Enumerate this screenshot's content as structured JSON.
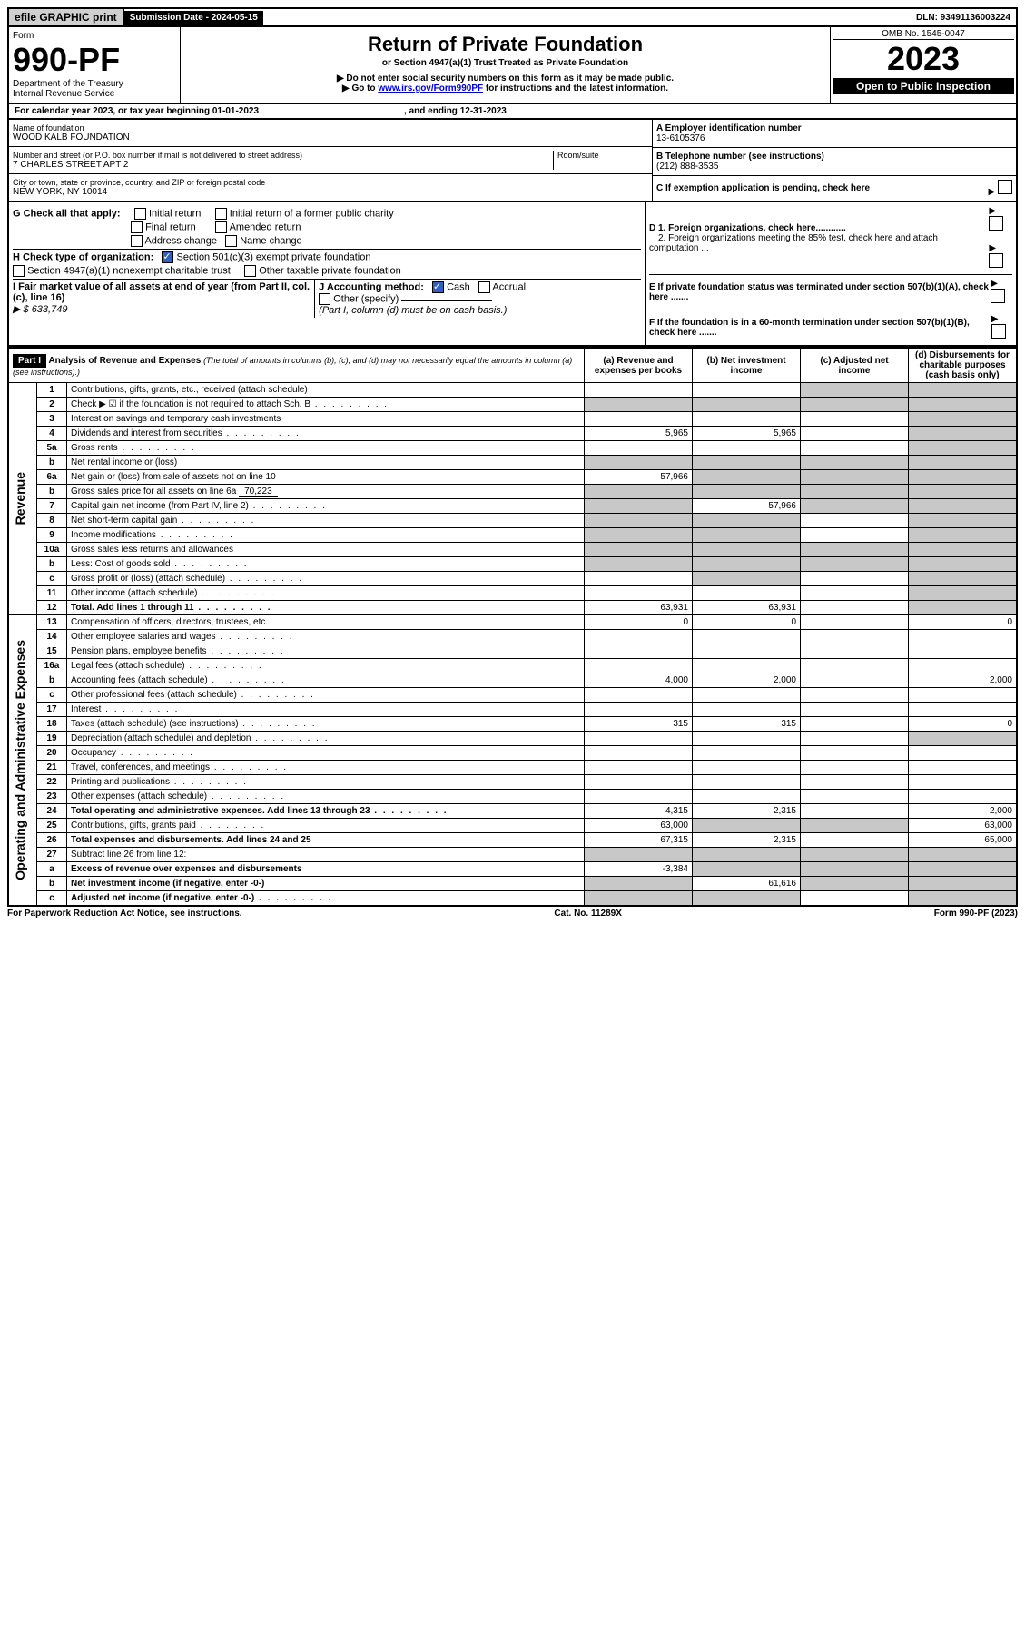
{
  "topbar": {
    "efile": "efile GRAPHIC print",
    "submission": "Submission Date - 2024-05-15",
    "dln": "DLN: 93491136003224"
  },
  "header": {
    "form_label": "Form",
    "form_no": "990-PF",
    "dept": "Department of the Treasury",
    "irs": "Internal Revenue Service",
    "title": "Return of Private Foundation",
    "subtitle": "or Section 4947(a)(1) Trust Treated as Private Foundation",
    "note1": "▶ Do not enter social security numbers on this form as it may be made public.",
    "note2_pre": "▶ Go to ",
    "note2_link": "www.irs.gov/Form990PF",
    "note2_post": " for instructions and the latest information.",
    "omb": "OMB No. 1545-0047",
    "year": "2023",
    "open": "Open to Public Inspection"
  },
  "calyear": {
    "text": "For calendar year 2023, or tax year beginning 01-01-2023",
    "ending": ", and ending 12-31-2023"
  },
  "entity": {
    "name_lbl": "Name of foundation",
    "name": "WOOD KALB FOUNDATION",
    "addr_lbl": "Number and street (or P.O. box number if mail is not delivered to street address)",
    "addr": "7 CHARLES STREET APT 2",
    "room_lbl": "Room/suite",
    "city_lbl": "City or town, state or province, country, and ZIP or foreign postal code",
    "city": "NEW YORK, NY  10014",
    "a_lbl": "A Employer identification number",
    "a_val": "13-6105376",
    "b_lbl": "B Telephone number (see instructions)",
    "b_val": "(212) 888-3535",
    "c_lbl": "C If exemption application is pending, check here"
  },
  "checks": {
    "g_lbl": "G Check all that apply:",
    "g1": "Initial return",
    "g2": "Initial return of a former public charity",
    "g3": "Final return",
    "g4": "Amended return",
    "g5": "Address change",
    "g6": "Name change",
    "h_lbl": "H Check type of organization:",
    "h1": "Section 501(c)(3) exempt private foundation",
    "h2": "Section 4947(a)(1) nonexempt charitable trust",
    "h3": "Other taxable private foundation",
    "i_lbl": "I Fair market value of all assets at end of year (from Part II, col. (c), line 16)",
    "i_val": "▶ $  633,749",
    "j_lbl": "J Accounting method:",
    "j1": "Cash",
    "j2": "Accrual",
    "j3": "Other (specify)",
    "j_note": "(Part I, column (d) must be on cash basis.)",
    "d1": "D 1. Foreign organizations, check here............",
    "d2": "2. Foreign organizations meeting the 85% test, check here and attach computation ...",
    "e": "E  If private foundation status was terminated under section 507(b)(1)(A), check here .......",
    "f": "F  If the foundation is in a 60-month termination under section 507(b)(1)(B), check here ......."
  },
  "part1": {
    "label": "Part I",
    "title": "Analysis of Revenue and Expenses",
    "title_note": "(The total of amounts in columns (b), (c), and (d) may not necessarily equal the amounts in column (a) (see instructions).)",
    "col_a": "(a) Revenue and expenses per books",
    "col_b": "(b) Net investment income",
    "col_c": "(c) Adjusted net income",
    "col_d": "(d) Disbursements for charitable purposes (cash basis only)"
  },
  "sections": {
    "rev": "Revenue",
    "exp": "Operating and Administrative Expenses"
  },
  "rows": [
    {
      "n": "1",
      "d": "Contributions, gifts, grants, etc., received (attach schedule)",
      "a": "",
      "b": "",
      "cGray": true,
      "dGray": true
    },
    {
      "n": "2",
      "d": "Check ▶ ☑ if the foundation is not required to attach Sch. B",
      "dots": true,
      "a": "",
      "aGray": true,
      "bGray": true,
      "cGray": true,
      "dGray": true,
      "bold": false
    },
    {
      "n": "3",
      "d": "Interest on savings and temporary cash investments",
      "a": "",
      "b": "",
      "c": "",
      "dGray": true
    },
    {
      "n": "4",
      "d": "Dividends and interest from securities",
      "dots": true,
      "a": "5,965",
      "b": "5,965",
      "c": "",
      "dGray": true
    },
    {
      "n": "5a",
      "d": "Gross rents",
      "dots": true,
      "a": "",
      "b": "",
      "c": "",
      "dGray": true
    },
    {
      "n": "b",
      "d": "Net rental income or (loss)",
      "underline": true,
      "aGray": true,
      "bGray": true,
      "cGray": true,
      "dGray": true
    },
    {
      "n": "6a",
      "d": "Net gain or (loss) from sale of assets not on line 10",
      "a": "57,966",
      "bGray": true,
      "cGray": true,
      "dGray": true
    },
    {
      "n": "b",
      "d": "Gross sales price for all assets on line 6a",
      "inline": "70,223",
      "aGray": true,
      "bGray": true,
      "cGray": true,
      "dGray": true
    },
    {
      "n": "7",
      "d": "Capital gain net income (from Part IV, line 2)",
      "dots": true,
      "aGray": true,
      "b": "57,966",
      "cGray": true,
      "dGray": true
    },
    {
      "n": "8",
      "d": "Net short-term capital gain",
      "dots": true,
      "aGray": true,
      "bGray": true,
      "c": "",
      "dGray": true
    },
    {
      "n": "9",
      "d": "Income modifications",
      "dots": true,
      "aGray": true,
      "bGray": true,
      "c": "",
      "dGray": true
    },
    {
      "n": "10a",
      "d": "Gross sales less returns and allowances",
      "aGray": true,
      "bGray": true,
      "cGray": true,
      "dGray": true
    },
    {
      "n": "b",
      "d": "Less: Cost of goods sold",
      "dots": true,
      "aGray": true,
      "bGray": true,
      "cGray": true,
      "dGray": true
    },
    {
      "n": "c",
      "d": "Gross profit or (loss) (attach schedule)",
      "dots": true,
      "a": "",
      "bGray": true,
      "c": "",
      "dGray": true
    },
    {
      "n": "11",
      "d": "Other income (attach schedule)",
      "dots": true,
      "a": "",
      "b": "",
      "c": "",
      "dGray": true
    },
    {
      "n": "12",
      "d": "Total. Add lines 1 through 11",
      "dots": true,
      "bold": true,
      "a": "63,931",
      "b": "63,931",
      "c": "",
      "dGray": true
    }
  ],
  "exprows": [
    {
      "n": "13",
      "d": "Compensation of officers, directors, trustees, etc.",
      "a": "0",
      "b": "0",
      "c": "",
      "dVal": "0"
    },
    {
      "n": "14",
      "d": "Other employee salaries and wages",
      "dots": true
    },
    {
      "n": "15",
      "d": "Pension plans, employee benefits",
      "dots": true
    },
    {
      "n": "16a",
      "d": "Legal fees (attach schedule)",
      "dots": true
    },
    {
      "n": "b",
      "d": "Accounting fees (attach schedule)",
      "dots": true,
      "a": "4,000",
      "b": "2,000",
      "c": "",
      "dVal": "2,000"
    },
    {
      "n": "c",
      "d": "Other professional fees (attach schedule)",
      "dots": true
    },
    {
      "n": "17",
      "d": "Interest",
      "dots": true
    },
    {
      "n": "18",
      "d": "Taxes (attach schedule) (see instructions)",
      "dots": true,
      "a": "315",
      "b": "315",
      "c": "",
      "dVal": "0"
    },
    {
      "n": "19",
      "d": "Depreciation (attach schedule) and depletion",
      "dots": true,
      "dGray": true
    },
    {
      "n": "20",
      "d": "Occupancy",
      "dots": true
    },
    {
      "n": "21",
      "d": "Travel, conferences, and meetings",
      "dots": true
    },
    {
      "n": "22",
      "d": "Printing and publications",
      "dots": true
    },
    {
      "n": "23",
      "d": "Other expenses (attach schedule)",
      "dots": true
    },
    {
      "n": "24",
      "d": "Total operating and administrative expenses. Add lines 13 through 23",
      "dots": true,
      "bold": true,
      "a": "4,315",
      "b": "2,315",
      "c": "",
      "dVal": "2,000"
    },
    {
      "n": "25",
      "d": "Contributions, gifts, grants paid",
      "dots": true,
      "a": "63,000",
      "bGray": true,
      "cGray": true,
      "dVal": "63,000"
    },
    {
      "n": "26",
      "d": "Total expenses and disbursements. Add lines 24 and 25",
      "bold": true,
      "a": "67,315",
      "b": "2,315",
      "c": "",
      "dVal": "65,000"
    },
    {
      "n": "27",
      "d": "Subtract line 26 from line 12:",
      "aGray": true,
      "bGray": true,
      "cGray": true,
      "dGray": true
    },
    {
      "n": "a",
      "d": "Excess of revenue over expenses and disbursements",
      "bold": true,
      "a": "-3,384",
      "bGray": true,
      "cGray": true,
      "dGray": true
    },
    {
      "n": "b",
      "d": "Net investment income (if negative, enter -0-)",
      "bold": true,
      "aGray": true,
      "b": "61,616",
      "cGray": true,
      "dGray": true
    },
    {
      "n": "c",
      "d": "Adjusted net income (if negative, enter -0-)",
      "dots": true,
      "bold": true,
      "aGray": true,
      "bGray": true,
      "c": "",
      "dGray": true
    }
  ],
  "footer": {
    "left": "For Paperwork Reduction Act Notice, see instructions.",
    "mid": "Cat. No. 11289X",
    "right": "Form 990-PF (2023)"
  }
}
